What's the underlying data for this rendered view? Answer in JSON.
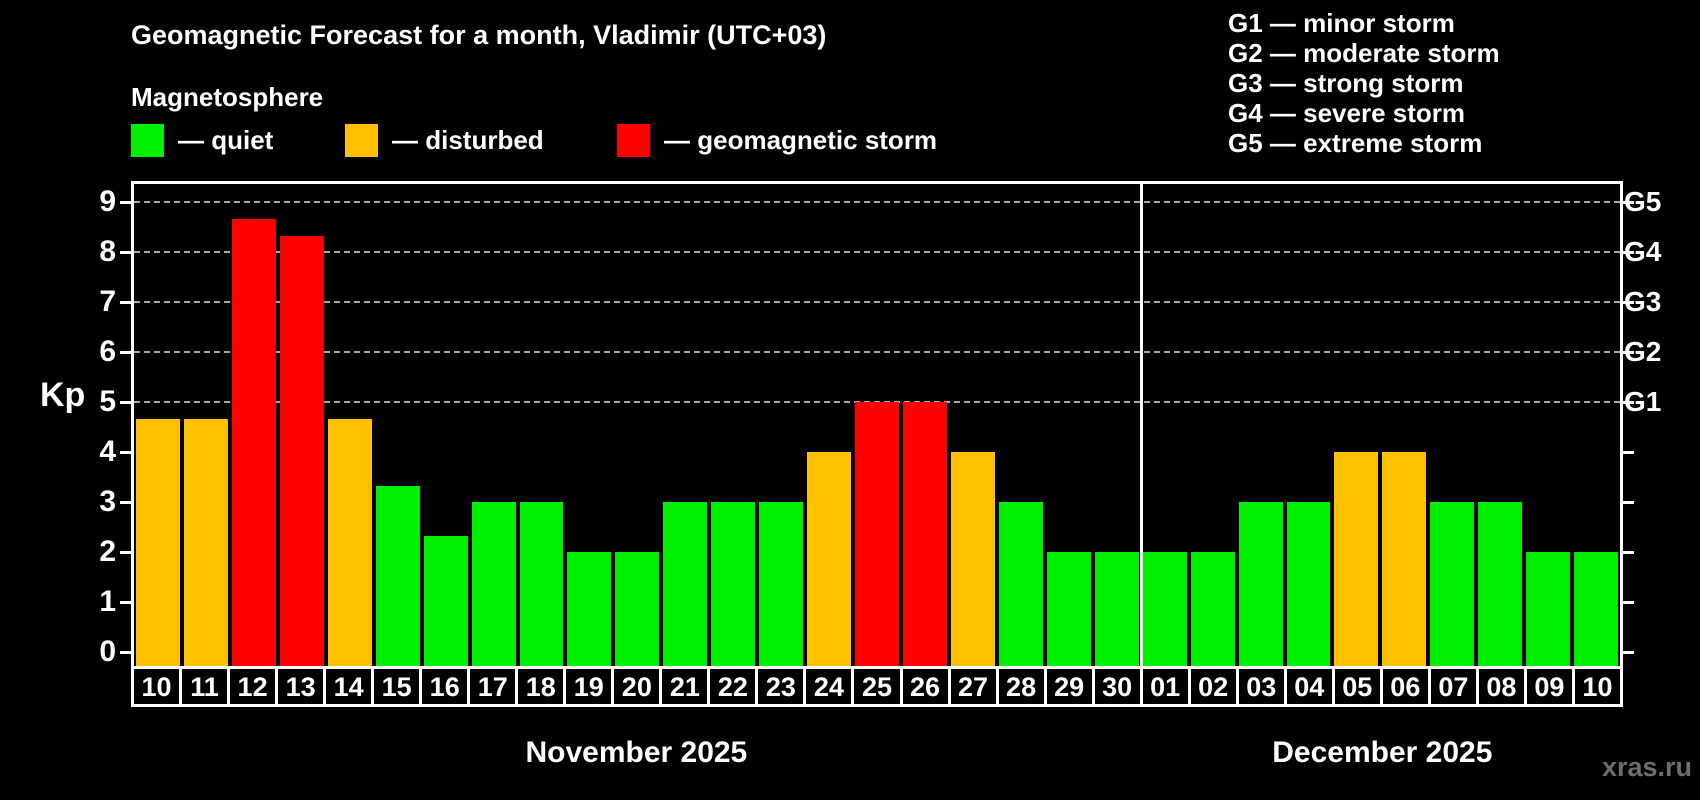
{
  "title": "Geomagnetic Forecast for a month, Vladimir (UTC+03)",
  "subtitle": "Magnetosphere",
  "watermark": "xras.ru",
  "colors": {
    "quiet": "#00ee00",
    "disturbed": "#ffc000",
    "storm": "#ff0000",
    "grid": "#a8a8a8",
    "axis": "#ffffff",
    "watermark_text": "#6e6e6e",
    "background": "#000000"
  },
  "legend": [
    {
      "status": "quiet",
      "label": "— quiet"
    },
    {
      "status": "disturbed",
      "label": "— disturbed"
    },
    {
      "status": "storm",
      "label": "— geomagnetic storm"
    }
  ],
  "g_legend": [
    "G1 — minor storm",
    "G2 — moderate storm",
    "G3 — strong storm",
    "G4 — severe storm",
    "G5 — extreme storm"
  ],
  "chart_data": {
    "type": "bar",
    "title": "Geomagnetic Forecast for a month, Vladimir (UTC+03)",
    "subtitle": "Magnetosphere",
    "ylabel": "Kp",
    "ylim": [
      0,
      9
    ],
    "yticks": [
      0,
      1,
      2,
      3,
      4,
      5,
      6,
      7,
      8,
      9
    ],
    "grid": "horizontal dashed lines at Kp 5-9",
    "right_axis": [
      {
        "label": "G1",
        "kp": 5
      },
      {
        "label": "G2",
        "kp": 6
      },
      {
        "label": "G3",
        "kp": 7
      },
      {
        "label": "G4",
        "kp": 8
      },
      {
        "label": "G5",
        "kp": 9
      }
    ],
    "gridlines_kp": [
      5,
      6,
      7,
      8,
      9
    ],
    "months": [
      {
        "label": "November 2025",
        "start_index": 0,
        "count": 21
      },
      {
        "label": "December 2025",
        "start_index": 21,
        "count": 10
      }
    ],
    "bars": [
      {
        "day": "10",
        "month": "November 2025",
        "kp": 4.67,
        "status": "disturbed"
      },
      {
        "day": "11",
        "month": "November 2025",
        "kp": 4.67,
        "status": "disturbed"
      },
      {
        "day": "12",
        "month": "November 2025",
        "kp": 8.67,
        "status": "storm"
      },
      {
        "day": "13",
        "month": "November 2025",
        "kp": 8.33,
        "status": "storm"
      },
      {
        "day": "14",
        "month": "November 2025",
        "kp": 4.67,
        "status": "disturbed"
      },
      {
        "day": "15",
        "month": "November 2025",
        "kp": 3.33,
        "status": "quiet"
      },
      {
        "day": "16",
        "month": "November 2025",
        "kp": 2.33,
        "status": "quiet"
      },
      {
        "day": "17",
        "month": "November 2025",
        "kp": 3,
        "status": "quiet"
      },
      {
        "day": "18",
        "month": "November 2025",
        "kp": 3,
        "status": "quiet"
      },
      {
        "day": "19",
        "month": "November 2025",
        "kp": 2,
        "status": "quiet"
      },
      {
        "day": "20",
        "month": "November 2025",
        "kp": 2,
        "status": "quiet"
      },
      {
        "day": "21",
        "month": "November 2025",
        "kp": 3,
        "status": "quiet"
      },
      {
        "day": "22",
        "month": "November 2025",
        "kp": 3,
        "status": "quiet"
      },
      {
        "day": "23",
        "month": "November 2025",
        "kp": 3,
        "status": "quiet"
      },
      {
        "day": "24",
        "month": "November 2025",
        "kp": 4,
        "status": "disturbed"
      },
      {
        "day": "25",
        "month": "November 2025",
        "kp": 5,
        "status": "storm"
      },
      {
        "day": "26",
        "month": "November 2025",
        "kp": 5,
        "status": "storm"
      },
      {
        "day": "27",
        "month": "November 2025",
        "kp": 4,
        "status": "disturbed"
      },
      {
        "day": "28",
        "month": "November 2025",
        "kp": 3,
        "status": "quiet"
      },
      {
        "day": "29",
        "month": "November 2025",
        "kp": 2,
        "status": "quiet"
      },
      {
        "day": "30",
        "month": "November 2025",
        "kp": 2,
        "status": "quiet"
      },
      {
        "day": "01",
        "month": "December 2025",
        "kp": 2,
        "status": "quiet"
      },
      {
        "day": "02",
        "month": "December 2025",
        "kp": 2,
        "status": "quiet"
      },
      {
        "day": "03",
        "month": "December 2025",
        "kp": 3,
        "status": "quiet"
      },
      {
        "day": "04",
        "month": "December 2025",
        "kp": 3,
        "status": "quiet"
      },
      {
        "day": "05",
        "month": "December 2025",
        "kp": 4,
        "status": "disturbed"
      },
      {
        "day": "06",
        "month": "December 2025",
        "kp": 4,
        "status": "disturbed"
      },
      {
        "day": "07",
        "month": "December 2025",
        "kp": 3,
        "status": "quiet"
      },
      {
        "day": "08",
        "month": "December 2025",
        "kp": 3,
        "status": "quiet"
      },
      {
        "day": "09",
        "month": "December 2025",
        "kp": 2,
        "status": "quiet"
      },
      {
        "day": "10",
        "month": "December 2025",
        "kp": 2,
        "status": "quiet"
      }
    ]
  }
}
